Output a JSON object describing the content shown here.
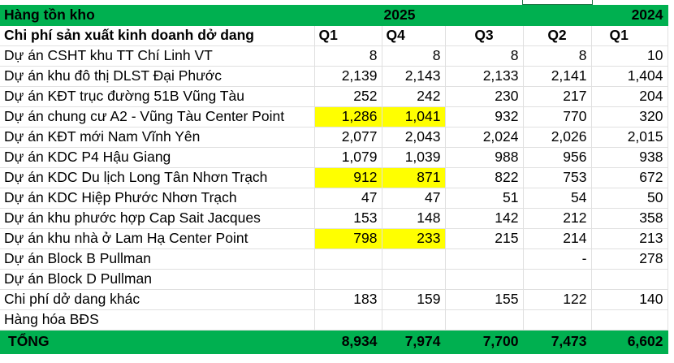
{
  "header": {
    "title": "Hàng tồn kho",
    "year_2025": "2025",
    "year_2024": "2024"
  },
  "subheader": {
    "label": "Chi phí sản xuất kinh doanh dở dang",
    "quarters": [
      "Q1",
      "Q4",
      "Q3",
      "Q2",
      "Q1"
    ]
  },
  "highlight_color": "#ffff00",
  "header_color": "#00b050",
  "rows": [
    {
      "name": "Dự án CSHT khu TT Chí Linh VT",
      "values": [
        "8",
        "8",
        "8",
        "8",
        "10"
      ],
      "highlight": [
        false,
        false
      ]
    },
    {
      "name": "Dự án khu đô thị DLST Đại Phước",
      "values": [
        "2,139",
        "2,143",
        "2,133",
        "2,141",
        "1,404"
      ],
      "highlight": [
        false,
        false
      ]
    },
    {
      "name": "Dự án KĐT trục đường 51B Vũng Tàu",
      "values": [
        "252",
        "242",
        "230",
        "217",
        "204"
      ],
      "highlight": [
        false,
        false
      ]
    },
    {
      "name": "Dự án chung cư A2 - Vũng Tàu Center Point",
      "values": [
        "1,286",
        "1,041",
        "932",
        "770",
        "320"
      ],
      "highlight": [
        true,
        true
      ]
    },
    {
      "name": "Dự án KĐT mới Nam Vĩnh Yên",
      "values": [
        "2,077",
        "2,043",
        "2,024",
        "2,026",
        "2,015"
      ],
      "highlight": [
        false,
        false
      ]
    },
    {
      "name": "Dự án KDC P4 Hậu Giang",
      "values": [
        "1,079",
        "1,039",
        "988",
        "956",
        "938"
      ],
      "highlight": [
        false,
        false
      ]
    },
    {
      "name": "Dự án KDC Du lịch Long Tân Nhơn Trạch",
      "values": [
        "912",
        "871",
        "822",
        "753",
        "672"
      ],
      "highlight": [
        true,
        true
      ]
    },
    {
      "name": "Dự án KDC Hiệp Phước Nhơn Trạch",
      "values": [
        "47",
        "47",
        "51",
        "54",
        "50"
      ],
      "highlight": [
        false,
        false
      ]
    },
    {
      "name": "Dự án khu phước hợp Cap Sait Jacques",
      "values": [
        "153",
        "148",
        "142",
        "212",
        "358"
      ],
      "highlight": [
        false,
        false
      ]
    },
    {
      "name": "Dự án khu nhà ở Lam Hạ Center Point",
      "values": [
        "798",
        "233",
        "215",
        "214",
        "213"
      ],
      "highlight": [
        true,
        true
      ]
    },
    {
      "name": "Dự án Block B Pullman",
      "values": [
        "",
        "",
        "",
        "-",
        "278"
      ],
      "highlight": [
        false,
        false
      ]
    },
    {
      "name": "Dự án Block D Pullman",
      "values": [
        "",
        "",
        "",
        "",
        ""
      ],
      "highlight": [
        false,
        false
      ]
    },
    {
      "name": "Chi phí dở dang khác",
      "values": [
        "183",
        "159",
        "155",
        "122",
        "140"
      ],
      "highlight": [
        false,
        false
      ]
    },
    {
      "name": "Hàng hóa BĐS",
      "values": [
        "",
        "",
        "",
        "",
        ""
      ],
      "highlight": [
        false,
        false
      ]
    }
  ],
  "total": {
    "label": "TỔNG",
    "values": [
      "8,934",
      "7,974",
      "7,700",
      "7,473",
      "6,602"
    ]
  }
}
